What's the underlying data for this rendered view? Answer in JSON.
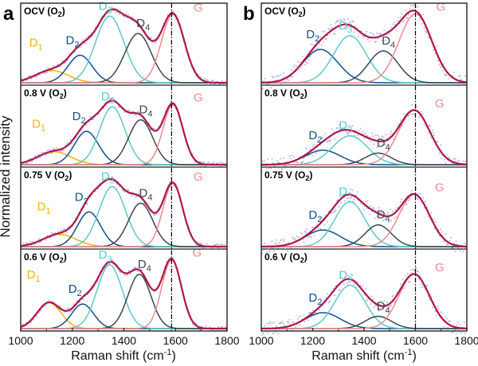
{
  "figure": {
    "ylabel": "Normalized intensity",
    "xlabel_main": "Raman shift (cm",
    "xlabel_sup": "-1",
    "xlabel_end": ")",
    "xticks": [
      "1000",
      "1200",
      "1400",
      "1600",
      "1800"
    ]
  },
  "colors": {
    "D1": "#f2b400",
    "D2": "#0f4f8c",
    "D3": "#5cc7cf",
    "D4": "#3a4650",
    "G": "#f08a8a",
    "fit": "#b0164a",
    "raw": "#8a87d6",
    "refline": "#000000"
  },
  "chart_data": [
    {
      "type": "line",
      "panel_letter": "a",
      "xlim": [
        1000,
        1800
      ],
      "reference_line_x": 1585,
      "peak_labels": {
        "D1": "D",
        "D1_sub": "1",
        "D2": "D",
        "D2_sub": "2",
        "D3": "D",
        "D3_sub": "3",
        "D4": "D",
        "D4_sub": "4",
        "G": "G"
      },
      "subpanels": [
        {
          "label": "OCV (O",
          "label_sub": "2",
          "label_end": ")",
          "peaks": [
            {
              "name": "D1",
              "center": 1120,
              "height": 0.17,
              "width": 150
            },
            {
              "name": "D2",
              "center": 1230,
              "height": 0.38,
              "width": 110
            },
            {
              "name": "D3",
              "center": 1345,
              "height": 0.92,
              "width": 130
            },
            {
              "name": "D4",
              "center": 1455,
              "height": 0.68,
              "width": 120
            },
            {
              "name": "G",
              "center": 1590,
              "height": 0.94,
              "width": 105
            }
          ]
        },
        {
          "label": "0.8 V (O",
          "label_sub": "2",
          "label_end": ")",
          "peaks": [
            {
              "name": "D1",
              "center": 1130,
              "height": 0.18,
              "width": 150
            },
            {
              "name": "D2",
              "center": 1255,
              "height": 0.46,
              "width": 110
            },
            {
              "name": "D3",
              "center": 1355,
              "height": 0.8,
              "width": 115
            },
            {
              "name": "D4",
              "center": 1465,
              "height": 0.62,
              "width": 110
            },
            {
              "name": "G",
              "center": 1590,
              "height": 0.83,
              "width": 90
            }
          ]
        },
        {
          "label": "0.75 V (O",
          "label_sub": "2",
          "label_end": ")",
          "peaks": [
            {
              "name": "D1",
              "center": 1150,
              "height": 0.17,
              "width": 150
            },
            {
              "name": "D2",
              "center": 1265,
              "height": 0.48,
              "width": 105
            },
            {
              "name": "D3",
              "center": 1355,
              "height": 0.83,
              "width": 120
            },
            {
              "name": "D4",
              "center": 1465,
              "height": 0.6,
              "width": 110
            },
            {
              "name": "G",
              "center": 1590,
              "height": 0.87,
              "width": 90
            }
          ]
        },
        {
          "label": "0.6 V (O",
          "label_sub": "2",
          "label_end": ")",
          "peaks": [
            {
              "name": "D1",
              "center": 1110,
              "height": 0.36,
              "width": 110
            },
            {
              "name": "D2",
              "center": 1240,
              "height": 0.34,
              "width": 100
            },
            {
              "name": "D3",
              "center": 1345,
              "height": 0.88,
              "width": 115
            },
            {
              "name": "D4",
              "center": 1460,
              "height": 0.75,
              "width": 105
            },
            {
              "name": "G",
              "center": 1585,
              "height": 0.95,
              "width": 90
            }
          ]
        }
      ]
    },
    {
      "type": "line",
      "panel_letter": "b",
      "xlim": [
        1000,
        1800
      ],
      "reference_line_x": 1600,
      "peak_labels": {
        "D2": "D",
        "D2_sub": "2",
        "D3": "D",
        "D3_sub": "3",
        "D4": "D",
        "D4_sub": "4",
        "G": "G"
      },
      "subpanels": [
        {
          "label": "OCV (O",
          "label_sub": "2",
          "label_end": ")",
          "peaks": [
            {
              "name": "D2",
              "center": 1230,
              "height": 0.46,
              "width": 160
            },
            {
              "name": "D3",
              "center": 1345,
              "height": 0.65,
              "width": 150
            },
            {
              "name": "D4",
              "center": 1475,
              "height": 0.44,
              "width": 135
            },
            {
              "name": "G",
              "center": 1600,
              "height": 0.95,
              "width": 150
            }
          ]
        },
        {
          "label": "0.8 V (O",
          "label_sub": "2",
          "label_end": ")",
          "peaks": [
            {
              "name": "D2",
              "center": 1240,
              "height": 0.2,
              "width": 160
            },
            {
              "name": "D3",
              "center": 1345,
              "height": 0.4,
              "width": 160
            },
            {
              "name": "D4",
              "center": 1455,
              "height": 0.16,
              "width": 120
            },
            {
              "name": "G",
              "center": 1595,
              "height": 0.75,
              "width": 145
            }
          ]
        },
        {
          "label": "0.75 V (O",
          "label_sub": "2",
          "label_end": ")",
          "peaks": [
            {
              "name": "D2",
              "center": 1240,
              "height": 0.23,
              "width": 160
            },
            {
              "name": "D3",
              "center": 1345,
              "height": 0.62,
              "width": 140
            },
            {
              "name": "D4",
              "center": 1455,
              "height": 0.3,
              "width": 120
            },
            {
              "name": "G",
              "center": 1595,
              "height": 0.72,
              "width": 140
            }
          ]
        },
        {
          "label": "0.6 V (O",
          "label_sub": "2",
          "label_end": ")",
          "peaks": [
            {
              "name": "D2",
              "center": 1240,
              "height": 0.22,
              "width": 160
            },
            {
              "name": "D3",
              "center": 1345,
              "height": 0.6,
              "width": 140
            },
            {
              "name": "D4",
              "center": 1455,
              "height": 0.17,
              "width": 120
            },
            {
              "name": "G",
              "center": 1595,
              "height": 0.75,
              "width": 140
            }
          ]
        }
      ]
    }
  ]
}
